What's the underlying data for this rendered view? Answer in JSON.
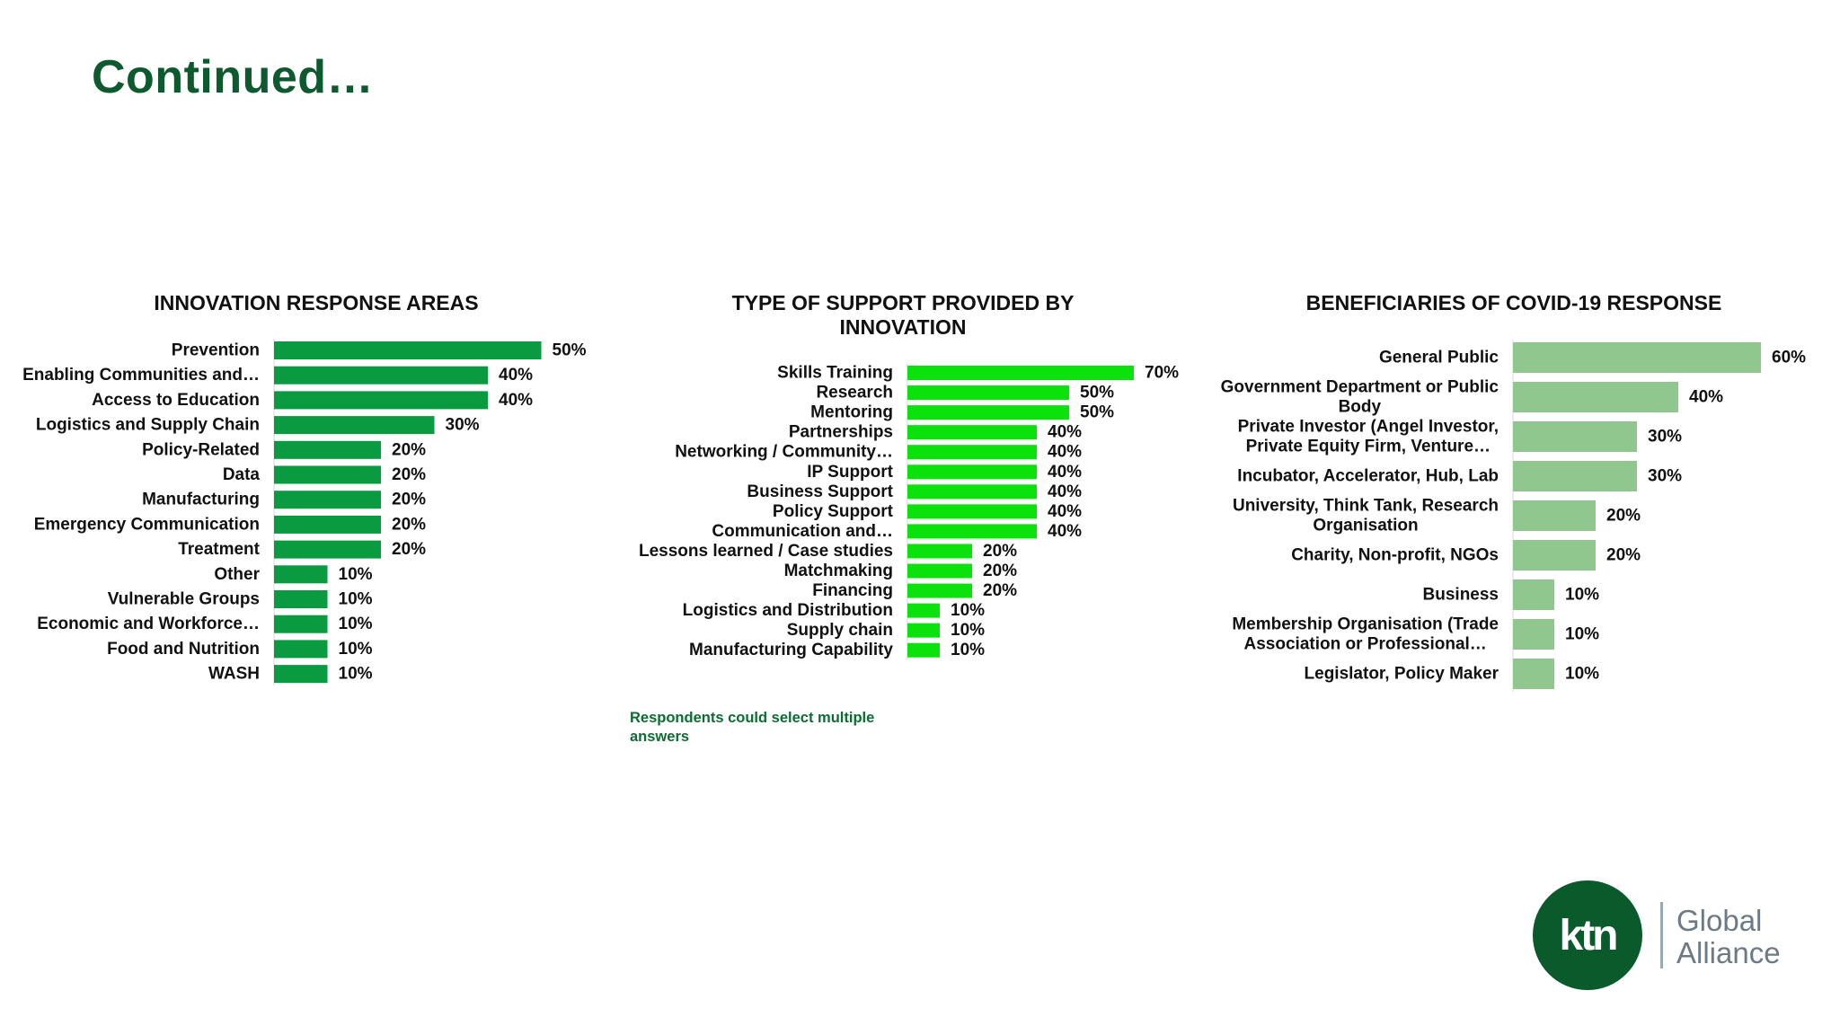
{
  "slide": {
    "title": "Continued…",
    "footnote": "Respondents could select multiple answers",
    "logo": {
      "mark": "ktn",
      "line1": "Global",
      "line2": "Alliance"
    }
  },
  "colors": {
    "title": "#0e5a2f",
    "chart1_bar": "#0a9a3f",
    "chart2_bar": "#0be10b",
    "chart3_bar": "#8fc78f",
    "footnote": "#0e6b33"
  },
  "chart_data": [
    {
      "type": "bar",
      "orientation": "horizontal",
      "title": "INNOVATION RESPONSE AREAS",
      "categories": [
        "Prevention",
        "Enabling Communities and…",
        "Access to Education",
        "Logistics and Supply Chain",
        "Policy-Related",
        "Data",
        "Manufacturing",
        "Emergency Communication",
        "Treatment",
        "Other",
        "Vulnerable Groups",
        "Economic and Workforce…",
        "Food and Nutrition",
        "WASH"
      ],
      "values": [
        50,
        40,
        40,
        30,
        20,
        20,
        20,
        20,
        20,
        10,
        10,
        10,
        10,
        10
      ],
      "value_labels": [
        "50%",
        "40%",
        "40%",
        "30%",
        "20%",
        "20%",
        "20%",
        "20%",
        "20%",
        "10%",
        "10%",
        "10%",
        "10%",
        "10%"
      ],
      "xlim": [
        0,
        100
      ],
      "grid": false,
      "legend": "none"
    },
    {
      "type": "bar",
      "orientation": "horizontal",
      "title": "TYPE OF SUPPORT PROVIDED BY INNOVATION",
      "categories": [
        "Skills Training",
        "Research",
        "Mentoring",
        "Partnerships",
        "Networking / Community…",
        "IP Support",
        "Business Support",
        "Policy Support",
        "Communication and…",
        "Lessons learned / Case studies",
        "Matchmaking",
        "Financing",
        "Logistics and Distribution",
        "Supply chain",
        "Manufacturing Capability"
      ],
      "values": [
        70,
        50,
        50,
        40,
        40,
        40,
        40,
        40,
        40,
        20,
        20,
        20,
        10,
        10,
        10
      ],
      "value_labels": [
        "70%",
        "50%",
        "50%",
        "40%",
        "40%",
        "40%",
        "40%",
        "40%",
        "40%",
        "20%",
        "20%",
        "20%",
        "10%",
        "10%",
        "10%"
      ],
      "xlim": [
        0,
        100
      ],
      "grid": false,
      "legend": "none"
    },
    {
      "type": "bar",
      "orientation": "horizontal",
      "title": "BENEFICIARIES OF COVID-19 RESPONSE",
      "categories": [
        [
          "General Public"
        ],
        [
          "Government Department or Public",
          "Body"
        ],
        [
          "Private Investor (Angel Investor,",
          "Private Equity Firm, Venture…"
        ],
        [
          "Incubator, Accelerator, Hub, Lab"
        ],
        [
          "University, Think Tank, Research",
          "Organisation"
        ],
        [
          "Charity, Non-profit, NGOs"
        ],
        [
          "Business"
        ],
        [
          "Membership Organisation (Trade",
          "Association or Professional…"
        ],
        [
          "Legislator, Policy Maker"
        ]
      ],
      "values": [
        60,
        40,
        30,
        30,
        20,
        20,
        10,
        10,
        10
      ],
      "value_labels": [
        "60%",
        "40%",
        "30%",
        "30%",
        "20%",
        "20%",
        "10%",
        "10%",
        "10%"
      ],
      "xlim": [
        0,
        100
      ],
      "grid": false,
      "legend": "none"
    }
  ]
}
